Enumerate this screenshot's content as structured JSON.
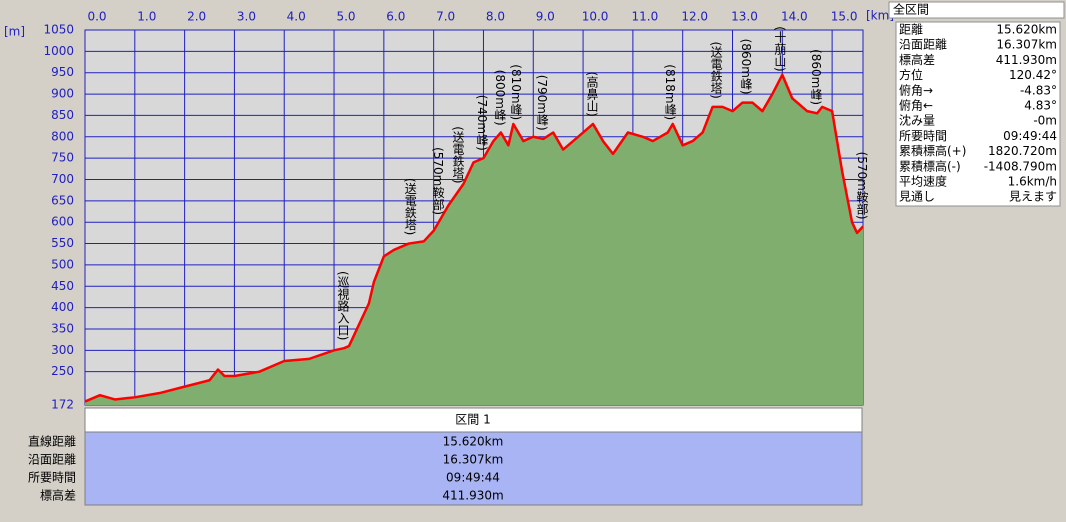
{
  "chart_data": {
    "type": "area",
    "x_unit": "[km]",
    "y_unit": "[m]",
    "x": [
      0,
      0.3,
      0.6,
      1.0,
      1.5,
      2.0,
      2.5,
      2.67,
      2.8,
      3.0,
      3.5,
      4.0,
      4.5,
      5.0,
      5.2,
      5.3,
      5.5,
      5.7,
      5.8,
      6.0,
      6.2,
      6.5,
      6.8,
      7.0,
      7.3,
      7.6,
      7.8,
      8.0,
      8.2,
      8.35,
      8.5,
      8.6,
      8.8,
      9.0,
      9.2,
      9.4,
      9.6,
      9.9,
      10.2,
      10.4,
      10.6,
      10.9,
      11.2,
      11.4,
      11.7,
      11.8,
      12.0,
      12.2,
      12.4,
      12.6,
      12.8,
      13.0,
      13.2,
      13.4,
      13.6,
      13.8,
      14.0,
      14.2,
      14.5,
      14.7,
      14.8,
      15.0,
      15.2,
      15.4,
      15.5,
      15.62
    ],
    "values": [
      180,
      195,
      185,
      190,
      200,
      215,
      230,
      255,
      240,
      240,
      250,
      275,
      280,
      300,
      305,
      310,
      360,
      410,
      460,
      520,
      535,
      550,
      555,
      580,
      640,
      690,
      740,
      750,
      790,
      810,
      780,
      830,
      790,
      800,
      795,
      810,
      770,
      800,
      830,
      790,
      760,
      810,
      800,
      790,
      810,
      830,
      780,
      790,
      810,
      870,
      870,
      860,
      880,
      880,
      860,
      900,
      945,
      890,
      860,
      855,
      870,
      860,
      720,
      600,
      575,
      590
    ],
    "line_color": "#ff0000",
    "fill_color": "#7fae6f",
    "xlim": [
      0,
      15.62
    ],
    "xticks": [
      {
        "value": 0,
        "label": "0.0"
      },
      {
        "value": 1,
        "label": "1.0"
      },
      {
        "value": 2,
        "label": "2.0"
      },
      {
        "value": 3,
        "label": "3.0"
      },
      {
        "value": 4,
        "label": "4.0"
      },
      {
        "value": 5,
        "label": "5.0"
      },
      {
        "value": 6,
        "label": "6.0"
      },
      {
        "value": 7,
        "label": "7.0"
      },
      {
        "value": 8,
        "label": "8.0"
      },
      {
        "value": 9,
        "label": "9.0"
      },
      {
        "value": 10,
        "label": "10.0"
      },
      {
        "value": 11,
        "label": "11.0"
      },
      {
        "value": 12,
        "label": "12.0"
      },
      {
        "value": 13,
        "label": "13.0"
      },
      {
        "value": 14,
        "label": "14.0"
      },
      {
        "value": 15,
        "label": "15.0"
      }
    ],
    "ylim": [
      172,
      1050
    ],
    "yticks": [
      172,
      250,
      300,
      350,
      400,
      450,
      500,
      550,
      600,
      650,
      700,
      750,
      800,
      850,
      900,
      950,
      1000,
      1050
    ],
    "grid": true,
    "annotations": [
      {
        "x": 5.18,
        "text": "(巡視路入口)"
      },
      {
        "x": 6.53,
        "text": "(送電鉄塔)"
      },
      {
        "x": 7.09,
        "text": "(570m鞍部)"
      },
      {
        "x": 7.49,
        "text": "(送電鉄塔)"
      },
      {
        "x": 7.97,
        "text": "(740m峰)"
      },
      {
        "x": 8.33,
        "text": "(800m峰)"
      },
      {
        "x": 8.65,
        "text": "(810m峰)"
      },
      {
        "x": 9.18,
        "text": "(790m峰)"
      },
      {
        "x": 10.18,
        "text": "(高鼻山)"
      },
      {
        "x": 11.75,
        "text": "(818m峰)"
      },
      {
        "x": 12.67,
        "text": "(送電鉄塔)"
      },
      {
        "x": 13.27,
        "text": "(860m峰)"
      },
      {
        "x": 13.95,
        "text": "(十萠山)"
      },
      {
        "x": 14.68,
        "text": "(860m峰)"
      },
      {
        "x": 15.6,
        "text": "(570m鞍部)"
      }
    ]
  },
  "segment_table": {
    "title": "区間 1",
    "rows": [
      [
        "直線距離",
        "15.620km"
      ],
      [
        "沿面距離",
        "16.307km"
      ],
      [
        "所要時間",
        "09:49:44"
      ],
      [
        "標高差",
        "411.930m"
      ]
    ]
  },
  "summary": {
    "title": "全区間",
    "rows": [
      [
        "距離",
        "15.620km"
      ],
      [
        "沿面距離",
        "16.307km"
      ],
      [
        "標高差",
        "411.930m"
      ],
      [
        "方位",
        "120.42°"
      ],
      [
        "俯角→",
        "-4.83°"
      ],
      [
        "俯角←",
        "4.83°"
      ],
      [
        "沈み量",
        "-0m"
      ],
      [
        "所要時間",
        "09:49:44"
      ],
      [
        "累積標高(+)",
        "1820.720m"
      ],
      [
        "累積標高(-)",
        "-1408.790m"
      ],
      [
        "平均速度",
        "1.6km/h"
      ],
      [
        "見通し",
        "見えます"
      ]
    ]
  }
}
